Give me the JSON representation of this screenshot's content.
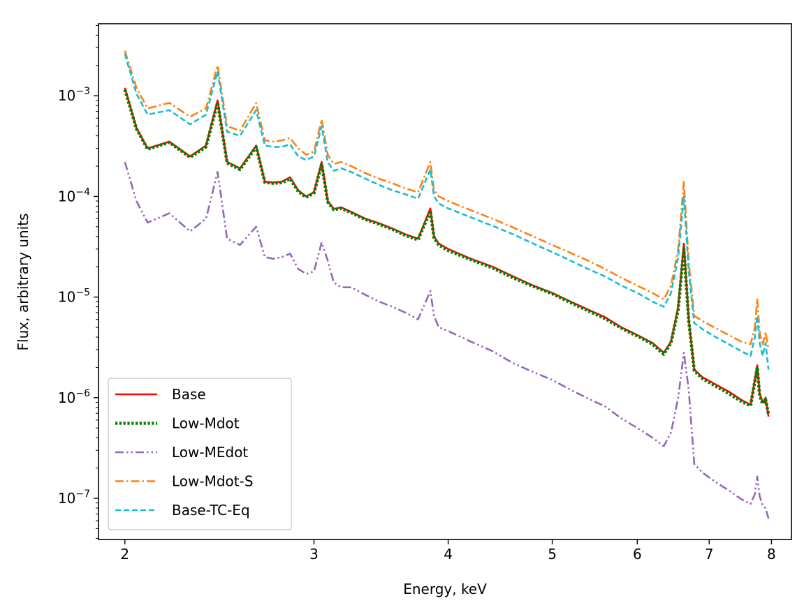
{
  "chart_data": {
    "type": "line",
    "xscale": "log",
    "yscale": "log",
    "xlabel": "Energy, keV",
    "ylabel": "Flux, arbitrary units",
    "xlim": [
      1.89,
      8.35
    ],
    "ylim": [
      3.9e-08,
      0.0052
    ],
    "xticks": [
      {
        "value": 2,
        "label": "2"
      },
      {
        "value": 3,
        "label": "3"
      },
      {
        "value": 4,
        "label": "4"
      },
      {
        "value": 5,
        "label": "5"
      },
      {
        "value": 6,
        "label": "6"
      },
      {
        "value": 7,
        "label": "7"
      },
      {
        "value": 8,
        "label": "8"
      }
    ],
    "yticks": [
      {
        "value": 1e-07,
        "base": "10",
        "exp": "−7"
      },
      {
        "value": 1e-06,
        "base": "10",
        "exp": "−6"
      },
      {
        "value": 1e-05,
        "base": "10",
        "exp": "−5"
      },
      {
        "value": 0.0001,
        "base": "10",
        "exp": "−4"
      },
      {
        "value": 0.001,
        "base": "10",
        "exp": "−3"
      }
    ],
    "legend_position": "lower-left",
    "series": [
      {
        "name": "Base",
        "color": "#ff0000",
        "style": "solid",
        "x": [
          2.0,
          2.05,
          2.1,
          2.2,
          2.3,
          2.38,
          2.44,
          2.49,
          2.56,
          2.65,
          2.7,
          2.75,
          2.8,
          2.85,
          2.9,
          2.95,
          3.0,
          3.05,
          3.09,
          3.13,
          3.18,
          3.25,
          3.35,
          3.45,
          3.55,
          3.65,
          3.75,
          3.85,
          3.88,
          3.92,
          4.0,
          4.2,
          4.4,
          4.6,
          4.8,
          5.0,
          5.2,
          5.4,
          5.6,
          5.8,
          6.0,
          6.2,
          6.35,
          6.45,
          6.55,
          6.63,
          6.7,
          6.78,
          6.9,
          7.1,
          7.3,
          7.5,
          7.65,
          7.72,
          7.76,
          7.8,
          7.85,
          7.9,
          7.95
        ],
        "y": [
          0.0012,
          0.00048,
          0.0003,
          0.00035,
          0.00025,
          0.00032,
          0.0009,
          0.00022,
          0.00019,
          0.00032,
          0.00014,
          0.000138,
          0.00014,
          0.000155,
          0.000115,
          0.0001,
          0.00011,
          0.00022,
          9e-05,
          7.5e-05,
          7.8e-05,
          7e-05,
          6e-05,
          5.4e-05,
          4.8e-05,
          4.2e-05,
          3.8e-05,
          7.6e-05,
          4e-05,
          3.4e-05,
          3e-05,
          2.4e-05,
          2e-05,
          1.6e-05,
          1.3e-05,
          1.1e-05,
          9e-06,
          7.5e-06,
          6.3e-06,
          5e-06,
          4.2e-06,
          3.5e-06,
          2.8e-06,
          3.6e-06,
          8e-06,
          3.4e-05,
          6e-06,
          1.9e-06,
          1.6e-06,
          1.35e-06,
          1.15e-06,
          9.5e-07,
          8.5e-07,
          1.5e-06,
          2.1e-06,
          1.1e-06,
          9e-07,
          1e-06,
          6.5e-07
        ]
      },
      {
        "name": "Low-Mdot",
        "color": "#008000",
        "style": "dotted",
        "x": [
          2.0,
          2.05,
          2.1,
          2.2,
          2.3,
          2.38,
          2.44,
          2.49,
          2.56,
          2.65,
          2.7,
          2.75,
          2.8,
          2.85,
          2.9,
          2.95,
          3.0,
          3.05,
          3.09,
          3.13,
          3.18,
          3.25,
          3.35,
          3.45,
          3.55,
          3.65,
          3.75,
          3.85,
          3.88,
          3.92,
          4.0,
          4.2,
          4.4,
          4.6,
          4.8,
          5.0,
          5.2,
          5.4,
          5.6,
          5.8,
          6.0,
          6.2,
          6.35,
          6.45,
          6.55,
          6.63,
          6.7,
          6.78,
          6.9,
          7.1,
          7.3,
          7.5,
          7.65,
          7.72,
          7.76,
          7.8,
          7.85,
          7.9,
          7.95
        ],
        "y": [
          0.00115,
          0.00047,
          0.000295,
          0.000345,
          0.000245,
          0.00031,
          0.00086,
          0.000215,
          0.000185,
          0.00031,
          0.000138,
          0.000135,
          0.000137,
          0.00015,
          0.000112,
          9.8e-05,
          0.000108,
          0.00021,
          8.8e-05,
          7.4e-05,
          7.6e-05,
          6.9e-05,
          5.9e-05,
          5.3e-05,
          4.7e-05,
          4.1e-05,
          3.7e-05,
          7.2e-05,
          3.9e-05,
          3.3e-05,
          2.9e-05,
          2.35e-05,
          1.95e-05,
          1.55e-05,
          1.28e-05,
          1.08e-05,
          8.8e-06,
          7.3e-06,
          6.1e-06,
          4.9e-06,
          4.1e-06,
          3.4e-06,
          2.7e-06,
          3.5e-06,
          7.5e-06,
          3e-05,
          5.8e-06,
          1.85e-06,
          1.55e-06,
          1.3e-06,
          1.1e-06,
          9.2e-07,
          8.3e-07,
          1.45e-06,
          2e-06,
          1.05e-06,
          8.7e-07,
          9.6e-07,
          6.8e-07
        ]
      },
      {
        "name": "Low-MEdot",
        "color": "#9467bd",
        "style": "dashdotdot",
        "x": [
          2.0,
          2.05,
          2.1,
          2.2,
          2.3,
          2.38,
          2.44,
          2.49,
          2.56,
          2.65,
          2.7,
          2.75,
          2.8,
          2.85,
          2.9,
          2.95,
          3.0,
          3.05,
          3.09,
          3.13,
          3.18,
          3.25,
          3.35,
          3.45,
          3.55,
          3.65,
          3.75,
          3.85,
          3.88,
          3.92,
          4.0,
          4.2,
          4.4,
          4.6,
          4.8,
          5.0,
          5.2,
          5.4,
          5.6,
          5.8,
          6.0,
          6.2,
          6.35,
          6.45,
          6.55,
          6.63,
          6.7,
          6.78,
          6.9,
          7.1,
          7.3,
          7.5,
          7.65,
          7.72,
          7.76,
          7.8,
          7.85,
          7.9,
          7.95
        ],
        "y": [
          0.00022,
          9e-05,
          5.5e-05,
          6.8e-05,
          4.5e-05,
          6e-05,
          0.000175,
          3.8e-05,
          3.3e-05,
          5e-05,
          2.5e-05,
          2.4e-05,
          2.5e-05,
          2.7e-05,
          1.9e-05,
          1.7e-05,
          1.8e-05,
          3.5e-05,
          2.3e-05,
          1.4e-05,
          1.25e-05,
          1.25e-05,
          1.05e-05,
          9e-06,
          8e-06,
          7e-06,
          6e-06,
          1.15e-05,
          6.5e-06,
          5e-06,
          4.6e-06,
          3.6e-06,
          2.9e-06,
          2.2e-06,
          1.8e-06,
          1.5e-06,
          1.2e-06,
          9.8e-07,
          8.2e-07,
          6.2e-07,
          5e-07,
          4e-07,
          3.3e-07,
          4.5e-07,
          1e-06,
          2.8e-06,
          1.2e-06,
          2.2e-07,
          1.8e-07,
          1.45e-07,
          1.2e-07,
          9.8e-08,
          8.8e-08,
          1.1e-07,
          1.65e-07,
          1.05e-07,
          8.5e-08,
          8e-08,
          6.3e-08
        ]
      },
      {
        "name": "Low-Mdot-S",
        "color": "#ff7f0e",
        "style": "dashdot",
        "x": [
          2.0,
          2.05,
          2.1,
          2.2,
          2.3,
          2.38,
          2.44,
          2.49,
          2.56,
          2.65,
          2.7,
          2.75,
          2.8,
          2.85,
          2.9,
          2.95,
          3.0,
          3.05,
          3.09,
          3.13,
          3.18,
          3.25,
          3.35,
          3.45,
          3.55,
          3.65,
          3.75,
          3.85,
          3.88,
          3.92,
          4.0,
          4.2,
          4.4,
          4.6,
          4.8,
          5.0,
          5.2,
          5.4,
          5.6,
          5.8,
          6.0,
          6.2,
          6.35,
          6.45,
          6.55,
          6.63,
          6.7,
          6.78,
          6.9,
          7.1,
          7.3,
          7.5,
          7.65,
          7.72,
          7.76,
          7.8,
          7.85,
          7.9,
          7.95
        ],
        "y": [
          0.0028,
          0.0012,
          0.00075,
          0.00085,
          0.00062,
          0.00075,
          0.002,
          0.0005,
          0.00045,
          0.00085,
          0.00036,
          0.00035,
          0.00036,
          0.00038,
          0.0003,
          0.00026,
          0.00028,
          0.00058,
          0.00026,
          0.00021,
          0.00022,
          0.0002,
          0.00017,
          0.00015,
          0.000135,
          0.00012,
          0.00011,
          0.00022,
          0.000115,
          0.0001,
          9e-05,
          7.3e-05,
          6e-05,
          4.9e-05,
          4e-05,
          3.3e-05,
          2.75e-05,
          2.3e-05,
          1.9e-05,
          1.55e-05,
          1.3e-05,
          1.1e-05,
          9.5e-06,
          1.3e-05,
          3e-05,
          0.00014,
          2.2e-05,
          6.5e-06,
          5.8e-06,
          4.9e-06,
          4.2e-06,
          3.6e-06,
          3.4e-06,
          5e-06,
          9.5e-06,
          4.5e-06,
          3.3e-06,
          4.5e-06,
          3e-06
        ]
      },
      {
        "name": "Base-TC-Eq",
        "color": "#17becf",
        "style": "dashed",
        "x": [
          2.0,
          2.05,
          2.1,
          2.2,
          2.3,
          2.38,
          2.44,
          2.49,
          2.56,
          2.65,
          2.7,
          2.75,
          2.8,
          2.85,
          2.9,
          2.95,
          3.0,
          3.05,
          3.09,
          3.13,
          3.18,
          3.25,
          3.35,
          3.45,
          3.55,
          3.65,
          3.75,
          3.85,
          3.88,
          3.92,
          4.0,
          4.2,
          4.4,
          4.6,
          4.8,
          5.0,
          5.2,
          5.4,
          5.6,
          5.8,
          6.0,
          6.2,
          6.35,
          6.45,
          6.55,
          6.63,
          6.7,
          6.78,
          6.9,
          7.1,
          7.3,
          7.5,
          7.65,
          7.72,
          7.76,
          7.8,
          7.85,
          7.9,
          7.95
        ],
        "y": [
          0.0026,
          0.00105,
          0.00065,
          0.00072,
          0.00052,
          0.00065,
          0.00175,
          0.00044,
          0.0004,
          0.00072,
          0.00032,
          0.00031,
          0.00031,
          0.00033,
          0.00025,
          0.00023,
          0.00025,
          0.0005,
          0.00022,
          0.00018,
          0.00019,
          0.000175,
          0.00015,
          0.00013,
          0.000115,
          0.000105,
          9.5e-05,
          0.000185,
          0.0001,
          8.5e-05,
          7.6e-05,
          6.2e-05,
          5.1e-05,
          4.2e-05,
          3.4e-05,
          2.8e-05,
          2.3e-05,
          1.9e-05,
          1.6e-05,
          1.3e-05,
          1.1e-05,
          9e-06,
          8e-06,
          1.1e-05,
          2.5e-05,
          0.0001,
          1.8e-05,
          5.5e-06,
          4.8e-06,
          4e-06,
          3.4e-06,
          2.9e-06,
          2.6e-06,
          4e-06,
          6.5e-06,
          3.5e-06,
          2.6e-06,
          3.5e-06,
          1.9e-06
        ]
      }
    ]
  }
}
